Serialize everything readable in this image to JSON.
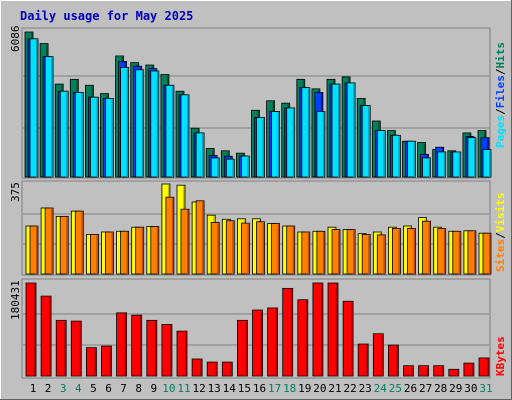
{
  "chart_data": [
    {
      "type": "bar",
      "title": "Daily usage for May 2025",
      "categories": [
        "1",
        "2",
        "3",
        "4",
        "5",
        "6",
        "7",
        "8",
        "9",
        "10",
        "11",
        "12",
        "13",
        "14",
        "15",
        "16",
        "17",
        "18",
        "19",
        "20",
        "21",
        "22",
        "23",
        "24",
        "25",
        "26",
        "27",
        "28",
        "29",
        "30",
        "31"
      ],
      "weekend_days": [
        3,
        4,
        10,
        11,
        17,
        18,
        24,
        25,
        31
      ],
      "ymax_label": "6086",
      "ylim": [
        0,
        6086
      ],
      "series": [
        {
          "name": "Hits",
          "values": [
            6086,
            5600,
            3900,
            4100,
            3850,
            3500,
            5080,
            4800,
            4700,
            4300,
            3600,
            2050,
            1200,
            1100,
            1000,
            2800,
            3200,
            3100,
            4100,
            3700,
            4100,
            4200,
            3300,
            2350,
            1950,
            1500,
            1450,
            1150,
            1100,
            1850,
            1950
          ]
        },
        {
          "name": "Files",
          "values": [
            5800,
            5050,
            3600,
            3550,
            3350,
            3300,
            4850,
            4650,
            4550,
            3850,
            3450,
            1850,
            900,
            870,
            880,
            2500,
            2750,
            2900,
            3750,
            3550,
            3900,
            3950,
            3000,
            1950,
            1750,
            1500,
            950,
            1250,
            1050,
            1700,
            1650
          ]
        },
        {
          "name": "Pages",
          "values": [
            5800,
            5050,
            3600,
            3550,
            3350,
            3300,
            4600,
            4500,
            4450,
            3850,
            3450,
            1850,
            800,
            750,
            880,
            2500,
            2750,
            2900,
            3750,
            2750,
            3900,
            3950,
            3000,
            1950,
            1750,
            1500,
            800,
            1050,
            1050,
            1650,
            1150
          ]
        }
      ],
      "legend": [
        {
          "name": "Pages",
          "color": "#00e0ff"
        },
        {
          "name": "Files",
          "color": "#0040ff"
        },
        {
          "name": "Hits",
          "color": "#00805c"
        }
      ]
    },
    {
      "type": "bar",
      "ymax_label": "375",
      "ylim": [
        0,
        375
      ],
      "series": [
        {
          "name": "Visits",
          "values": [
            200,
            275,
            240,
            262,
            165,
            175,
            178,
            195,
            198,
            375,
            370,
            300,
            245,
            228,
            230,
            230,
            210,
            200,
            175,
            178,
            195,
            185,
            168,
            175,
            195,
            200,
            235,
            195,
            178,
            180,
            170
          ]
        },
        {
          "name": "Sites",
          "values": [
            200,
            275,
            240,
            262,
            165,
            175,
            178,
            195,
            198,
            320,
            270,
            305,
            215,
            222,
            212,
            218,
            210,
            200,
            175,
            178,
            185,
            185,
            165,
            163,
            190,
            190,
            220,
            190,
            178,
            180,
            170
          ]
        }
      ],
      "legend": [
        {
          "name": "Sites",
          "color": "#ff8000"
        },
        {
          "name": "Visits",
          "color": "#ffff00"
        }
      ]
    },
    {
      "type": "bar",
      "ymax_label": "180431",
      "ylim": [
        0,
        180431
      ],
      "series": [
        {
          "name": "KBytes",
          "values": [
            180431,
            155000,
            108000,
            106500,
            55000,
            58000,
            122500,
            118000,
            108000,
            100000,
            87000,
            33000,
            27000,
            27000,
            108000,
            128000,
            132000,
            170000,
            148000,
            180431,
            180431,
            145000,
            62000,
            82000,
            60000,
            20000,
            20000,
            20000,
            13000,
            25000,
            35000
          ]
        }
      ],
      "legend": [
        {
          "name": "KBytes",
          "color": "#ff0000"
        }
      ]
    }
  ],
  "colors": {
    "background": "#c0c0c0",
    "title": "#0000c0",
    "weekday_label": "#000000",
    "weekend_label": "#00805c",
    "gridline": "#808080",
    "separator_slash": "#000000"
  }
}
